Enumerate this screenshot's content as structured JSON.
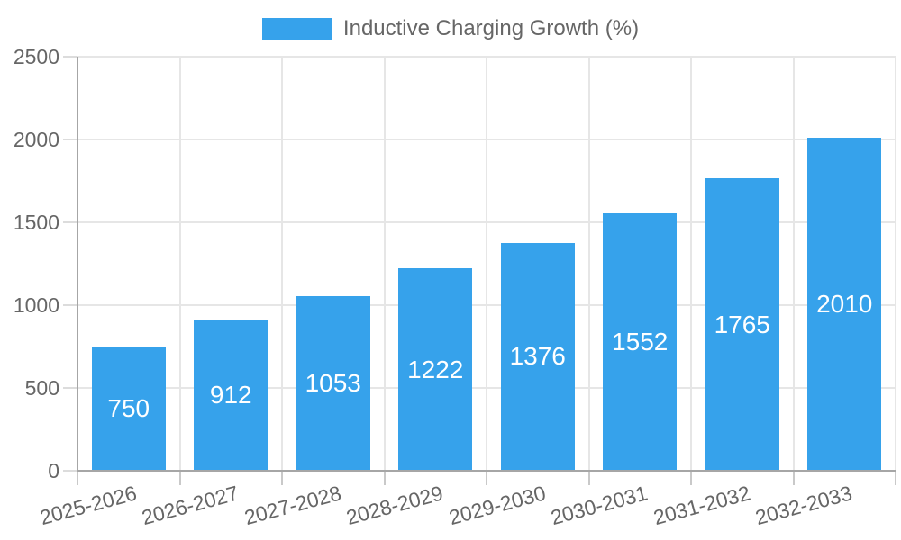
{
  "legend": {
    "label": "Inductive Charging Growth (%)"
  },
  "colors": {
    "bar": "#36A2EB",
    "grid": "#e6e6e6",
    "axis_line": "#a6a6a6",
    "tick_text": "#666666",
    "data_label": "#ffffff",
    "background": "#ffffff"
  },
  "chart_data": {
    "type": "bar",
    "title": "",
    "xlabel": "",
    "ylabel": "",
    "categories": [
      "2025-2026",
      "2026-2027",
      "2027-2028",
      "2028-2029",
      "2029-2030",
      "2030-2031",
      "2031-2032",
      "2032-2033"
    ],
    "series": [
      {
        "name": "Inductive Charging Growth (%)",
        "values": [
          750,
          912,
          1053,
          1222,
          1376,
          1552,
          1765,
          2010
        ]
      }
    ],
    "ylim": [
      0,
      2500
    ],
    "yticks": [
      0,
      500,
      1000,
      1500,
      2000,
      2500
    ],
    "grid": true,
    "legend_position": "top-center",
    "data_labels": "inside-center",
    "x_tick_rotation_deg": -15
  }
}
